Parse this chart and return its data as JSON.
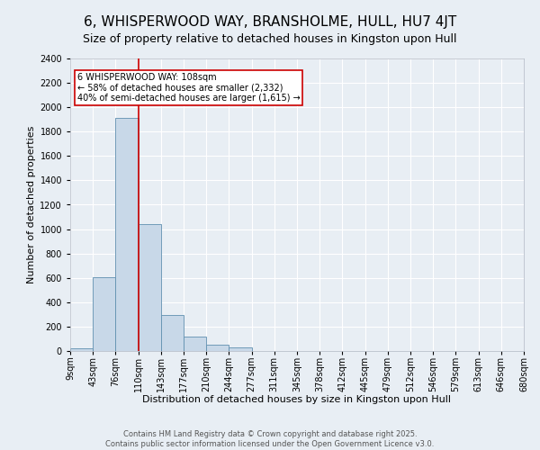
{
  "title": "6, WHISPERWOOD WAY, BRANSHOLME, HULL, HU7 4JT",
  "subtitle": "Size of property relative to detached houses in Kingston upon Hull",
  "xlabel": "Distribution of detached houses by size in Kingston upon Hull",
  "ylabel": "Number of detached properties",
  "footer_line1": "Contains HM Land Registry data © Crown copyright and database right 2025.",
  "footer_line2": "Contains public sector information licensed under the Open Government Licence v3.0.",
  "bins": [
    "9sqm",
    "43sqm",
    "76sqm",
    "110sqm",
    "143sqm",
    "177sqm",
    "210sqm",
    "244sqm",
    "277sqm",
    "311sqm",
    "345sqm",
    "378sqm",
    "412sqm",
    "445sqm",
    "479sqm",
    "512sqm",
    "546sqm",
    "579sqm",
    "613sqm",
    "646sqm",
    "680sqm"
  ],
  "values": [
    20,
    605,
    1910,
    1040,
    295,
    118,
    52,
    30,
    0,
    0,
    0,
    0,
    0,
    0,
    0,
    0,
    0,
    0,
    0,
    0
  ],
  "bar_color": "#c8d8e8",
  "bar_edge_color": "#6090b0",
  "vline_x": 3,
  "vline_color": "#cc0000",
  "annotation_line1": "6 WHISPERWOOD WAY: 108sqm",
  "annotation_line2": "← 58% of detached houses are smaller (2,332)",
  "annotation_line3": "40% of semi-detached houses are larger (1,615) →",
  "annotation_box_color": "#cc0000",
  "annotation_box_facecolor": "white",
  "ylim": [
    0,
    2400
  ],
  "yticks": [
    0,
    200,
    400,
    600,
    800,
    1000,
    1200,
    1400,
    1600,
    1800,
    2000,
    2200,
    2400
  ],
  "background_color": "#e8eef4",
  "grid_color": "white",
  "title_fontsize": 11,
  "subtitle_fontsize": 9,
  "axis_label_fontsize": 8,
  "tick_fontsize": 7,
  "footer_fontsize": 6
}
